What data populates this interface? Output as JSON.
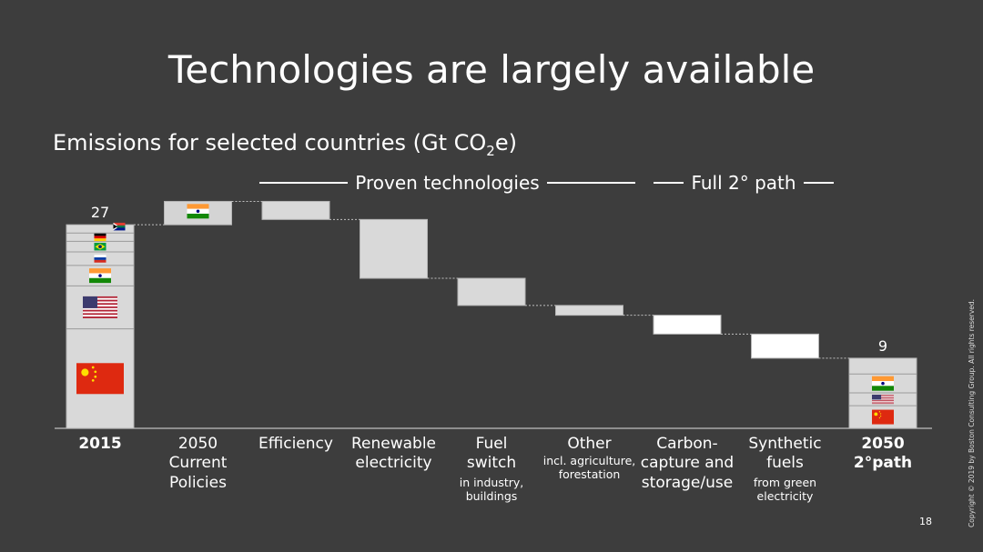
{
  "slide": {
    "title": "Technologies are largely available",
    "subtitle_main": "Emissions for selected countries (Gt CO",
    "subtitle_sub": "2",
    "subtitle_end": "e)",
    "group_proven": "Proven technologies",
    "group_full": "Full 2° path",
    "copyright": "Copyright © 2019 by Boston Consulting Group. All rights reserved.",
    "page_number": "18"
  },
  "chart_data": {
    "type": "bar",
    "subtype": "waterfall",
    "title": "Emissions for selected countries (Gt CO2e)",
    "categories": [
      {
        "main": "2015",
        "bold": true,
        "sub": ""
      },
      {
        "main": "2050\nCurrent\nPolicies",
        "bold": false,
        "sub": ""
      },
      {
        "main": "Efficiency",
        "bold": false,
        "sub": ""
      },
      {
        "main": "Renewable\nelectricity",
        "bold": false,
        "sub": ""
      },
      {
        "main": "Fuel\nswitch",
        "bold": false,
        "sub": "in industry,\nbuildings"
      },
      {
        "main": "Other",
        "bold": false,
        "sub": "incl. agriculture,\nforestation"
      },
      {
        "main": "Carbon-\ncapture and\nstorage/use",
        "bold": false,
        "sub": ""
      },
      {
        "main": "Synthetic\nfuels",
        "bold": false,
        "sub": "from green\nelectricity"
      },
      {
        "main": "2050\n2°path",
        "bold": true,
        "sub": ""
      }
    ],
    "bars": [
      {
        "kind": "total",
        "start": 0,
        "end": 27,
        "label": "27",
        "segments": [
          {
            "flag": "china",
            "from": 0,
            "to": 13.2
          },
          {
            "flag": "usa",
            "from": 13.2,
            "to": 18.9
          },
          {
            "flag": "india",
            "from": 18.9,
            "to": 21.6
          },
          {
            "flag": "russia",
            "from": 21.6,
            "to": 23.4
          },
          {
            "flag": "brazil",
            "from": 23.4,
            "to": 24.8
          },
          {
            "flag": "germany",
            "from": 24.8,
            "to": 25.9
          },
          {
            "flag": "south-africa",
            "from": 25.9,
            "to": 27
          }
        ]
      },
      {
        "kind": "increase",
        "start": 27,
        "end": 30.1,
        "flag": "india"
      },
      {
        "kind": "decrease",
        "start": 30.1,
        "end": 27.7
      },
      {
        "kind": "decrease",
        "start": 27.7,
        "end": 19.9
      },
      {
        "kind": "decrease",
        "start": 19.9,
        "end": 16.3
      },
      {
        "kind": "decrease",
        "start": 16.3,
        "end": 15.0
      },
      {
        "kind": "decrease",
        "start": 15.0,
        "end": 12.5,
        "fill": "white"
      },
      {
        "kind": "decrease",
        "start": 12.5,
        "end": 9.3,
        "fill": "white"
      },
      {
        "kind": "total",
        "start": 0,
        "end": 9.3,
        "label": "9",
        "segments": [
          {
            "flag": "china",
            "from": 0,
            "to": 3.0
          },
          {
            "flag": "usa",
            "from": 3.0,
            "to": 4.7
          },
          {
            "flag": "india",
            "from": 4.7,
            "to": 7.2
          },
          {
            "flag": "other",
            "from": 7.2,
            "to": 9.3
          }
        ]
      }
    ],
    "ylim": [
      0,
      31
    ],
    "xlabel": "",
    "ylabel": "",
    "grid": false,
    "legend": "none"
  }
}
